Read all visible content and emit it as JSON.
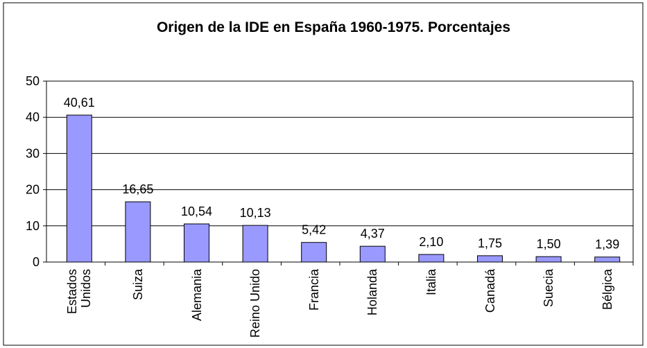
{
  "chart_data": {
    "type": "bar",
    "title": "Origen de la IDE en España 1960-1975. Porcentajes",
    "categories": [
      "Estados Unidos",
      "Suiza",
      "Alemania",
      "Reino Unido",
      "Francia",
      "Holanda",
      "Italia",
      "Canadá",
      "Suecia",
      "Bélgica"
    ],
    "values": [
      40.61,
      16.65,
      10.54,
      10.13,
      5.42,
      4.37,
      2.1,
      1.75,
      1.5,
      1.39
    ],
    "value_labels": [
      "40,61",
      "16,65",
      "10,54",
      "10,13",
      "5,42",
      "4,37",
      "2,10",
      "1,75",
      "1,50",
      "1,39"
    ],
    "color": "#9999ff",
    "ylim": [
      0,
      50
    ],
    "yticks": [
      0,
      10,
      20,
      30,
      40,
      50
    ],
    "grid": true
  }
}
